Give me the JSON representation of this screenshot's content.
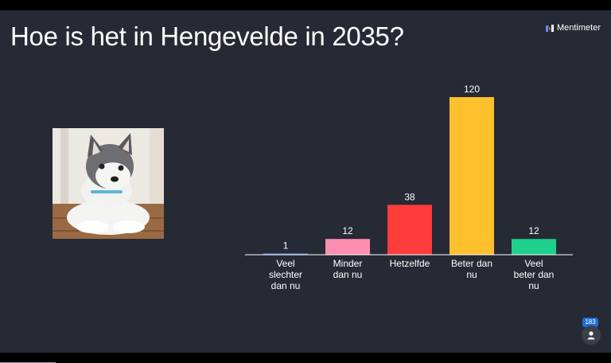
{
  "slide": {
    "question": "Hoe is het in Hengevelde in 2035?",
    "brand": "Mentimeter"
  },
  "participants": {
    "count": "183"
  },
  "icons": {
    "brand_logo": "mentimeter-logo-icon",
    "participants": "user-icon"
  },
  "colors": {
    "background": "#262a34",
    "bars": [
      "#4b7bd8",
      "#ff8fb0",
      "#ff3b3b",
      "#ffc02e",
      "#1fd08a"
    ]
  },
  "chart_data": {
    "type": "bar",
    "title": "",
    "categories": [
      [
        "Veel",
        "slechter",
        "dan nu"
      ],
      [
        "Minder",
        "dan nu"
      ],
      [
        "Hetzelfde"
      ],
      [
        "Beter dan",
        "nu"
      ],
      [
        "Veel",
        "beter dan",
        "nu"
      ]
    ],
    "values": [
      1,
      12,
      38,
      120,
      12
    ],
    "ylim": [
      0,
      120
    ],
    "grid": false,
    "legend": "none"
  }
}
